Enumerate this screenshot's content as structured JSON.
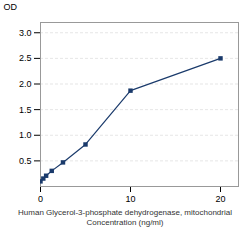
{
  "chart_data": {
    "type": "line",
    "x": [
      0,
      0.312,
      0.625,
      1.25,
      2.5,
      5,
      10,
      20
    ],
    "values": [
      0.1,
      0.155,
      0.21,
      0.305,
      0.47,
      0.82,
      1.87,
      2.5
    ],
    "xlabel": "Human Glycerol-3-phosphate dehydrogenase, mitochondrial\nConcentration (ng/ml)",
    "ylabel": "OD",
    "xlim": [
      0,
      22
    ],
    "ylim": [
      0,
      3.2
    ],
    "xticks": [
      0,
      10,
      20
    ],
    "yticks": [
      0.5,
      {
        "value": 1,
        "label": "1.0"
      },
      1.5,
      {
        "value": 2,
        "label": "2.0"
      },
      2.5,
      {
        "value": 3,
        "label": "3.0"
      }
    ],
    "grid": "y",
    "color": "#1a3a6b",
    "marker": "square"
  }
}
